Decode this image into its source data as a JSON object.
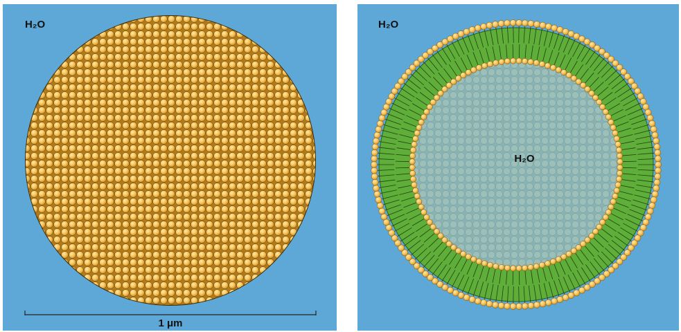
{
  "left_panel": {
    "label": "H₂O",
    "scale_label": "1 μm"
  },
  "right_panel": {
    "outer_label": "H₂O",
    "inner_label": "H₂O"
  }
}
